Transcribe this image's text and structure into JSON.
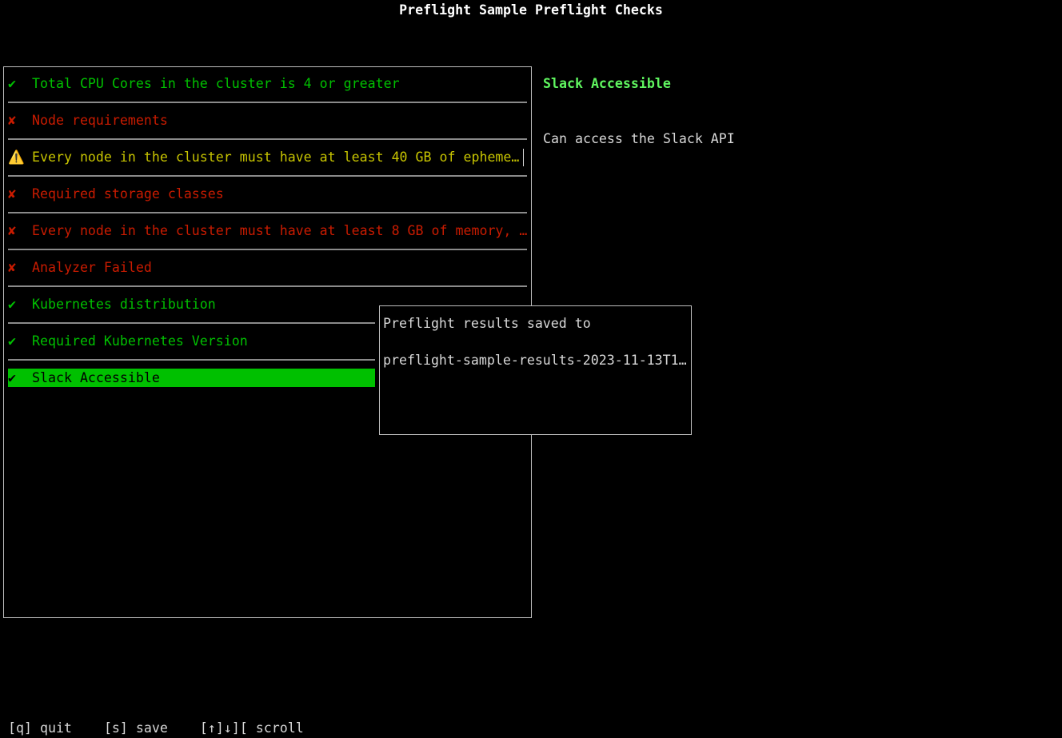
{
  "title": "Preflight Sample Preflight Checks",
  "colors": {
    "pass": "#00c000",
    "fail": "#c91b00",
    "warn": "#c7c400",
    "detail_title": "#5ff55f",
    "border": "#bdbdbd"
  },
  "checks": [
    {
      "status": "pass",
      "icon": "✔",
      "icon_name": "check-icon",
      "label": "Total CPU Cores in the cluster is 4 or greater"
    },
    {
      "status": "fail",
      "icon": "✘",
      "icon_name": "cross-icon",
      "label": "Node requirements"
    },
    {
      "status": "warn",
      "icon": "⚠️",
      "icon_name": "warning-icon",
      "label": "Every node in the cluster must have at least 40 GB of epheme…"
    },
    {
      "status": "fail",
      "icon": "✘",
      "icon_name": "cross-icon",
      "label": "Required storage classes"
    },
    {
      "status": "fail",
      "icon": "✘",
      "icon_name": "cross-icon",
      "label": "Every node in the cluster must have at least 8 GB of memory, …"
    },
    {
      "status": "fail",
      "icon": "✘",
      "icon_name": "cross-icon",
      "label": "Analyzer Failed"
    },
    {
      "status": "pass",
      "icon": "✔",
      "icon_name": "check-icon",
      "label": "Kubernetes distribution"
    },
    {
      "status": "pass",
      "icon": "✔",
      "icon_name": "check-icon",
      "label": "Required Kubernetes Version"
    },
    {
      "status": "pass",
      "icon": "✔",
      "icon_name": "check-icon",
      "label": "Slack Accessible",
      "selected": true
    }
  ],
  "detail": {
    "title": "Slack Accessible",
    "description": "Can access the Slack API"
  },
  "popup": {
    "line1": "Preflight results saved to",
    "line2": "preflight-sample-results-2023-11-13T1…"
  },
  "footer": {
    "quit": "[q] quit",
    "save": "[s] save",
    "scroll": "[↑]↓][ scroll"
  }
}
